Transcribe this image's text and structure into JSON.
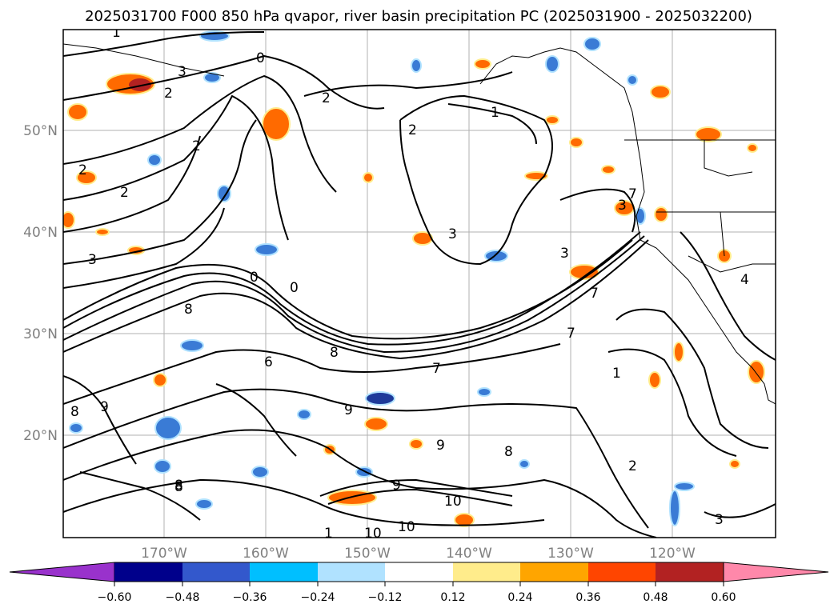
{
  "title": "2025031700 F000 850 hPa qvapor, river basin precipitation PC (2025031900 - 2025032200)",
  "map": {
    "lat_labels": [
      "50°N",
      "40°N",
      "30°N",
      "20°N"
    ],
    "lon_labels": [
      "170°W",
      "160°W",
      "150°W",
      "140°W",
      "130°W",
      "120°W"
    ],
    "gridlines": true
  },
  "colorbar": {
    "tick_labels": [
      "−0.60",
      "−0.48",
      "−0.36",
      "−0.24",
      "−0.12",
      "0.12",
      "0.24",
      "0.36",
      "0.48",
      "0.60"
    ],
    "colors": [
      "#9932cc",
      "#00008b",
      "#3358cc",
      "#00bfff",
      "#b0e2ff",
      "#ffffff",
      "#ffec8b",
      "#ffa500",
      "#ff4500",
      "#b22222",
      "#ff88aa"
    ],
    "extend": "both"
  },
  "contours": {
    "color": "#000000",
    "labels": [
      "1",
      "0",
      "2",
      "3",
      "2",
      "2",
      "2",
      "2",
      "2",
      "3",
      "1",
      "0",
      "0",
      "3",
      "8",
      "7",
      "6",
      "7",
      "8",
      "9",
      "9",
      "8",
      "10",
      "10",
      "10",
      "9",
      "8",
      "1",
      "2",
      "3",
      "7",
      "7",
      "1",
      "4",
      "3",
      "3",
      "8",
      "9",
      "8"
    ]
  },
  "shading_colors": {
    "negative_light": "#b0e2ff",
    "negative_mid": "#3a7bd5",
    "negative_dark": "#1e3a9a",
    "positive_light": "#ffec8b",
    "positive_mid": "#ff6a00",
    "positive_dark": "#b22222"
  }
}
